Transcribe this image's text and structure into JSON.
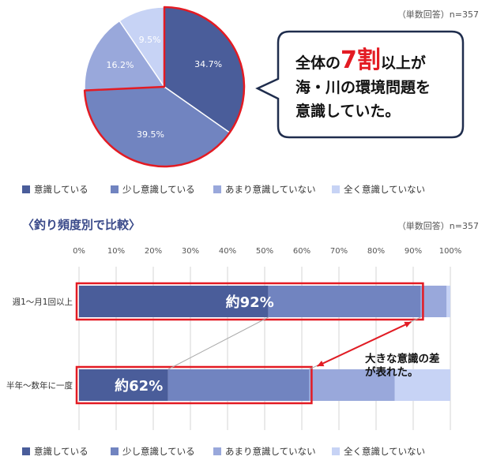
{
  "colors": {
    "c1": "#4a5d9a",
    "c2": "#7184c0",
    "c3": "#99a8db",
    "c4": "#c7d3f5",
    "highlight": "#e31b23"
  },
  "top": {
    "note": "（単数回答）n=357",
    "callout": {
      "line1_a": "全体の",
      "line1_big": "7割",
      "line1_b": "以上が",
      "line2": "海・川の環境問題を",
      "line3": "意識していた。"
    }
  },
  "bottom": {
    "section_title": "〈釣り頻度別で比較〉",
    "note": "（単数回答）n=357",
    "row_labels": [
      "週1〜月1回以上",
      "半年〜数年に一度"
    ],
    "highlight_labels": [
      "約92%",
      "約62%"
    ],
    "annotation": "大きな意識の差\nが表れた。"
  },
  "legend": [
    "意識している",
    "少し意識している",
    "あまり意識していない",
    "全く意識していない"
  ],
  "chart_data": [
    {
      "type": "pie",
      "categories": [
        "意識している",
        "少し意識している",
        "あまり意識していない",
        "全く意識していない"
      ],
      "values": [
        34.7,
        39.5,
        16.2,
        9.5
      ],
      "labels": [
        "34.7%",
        "39.5%",
        "16.2%",
        "9.5%"
      ]
    },
    {
      "type": "bar",
      "orientation": "horizontal-stacked",
      "categories": [
        "週1〜月1回以上",
        "半年〜数年に一度"
      ],
      "x_ticks": [
        "0%",
        "10%",
        "20%",
        "30%",
        "40%",
        "50%",
        "60%",
        "70%",
        "80%",
        "90%",
        "100%"
      ],
      "xlim": [
        0,
        100
      ],
      "series": [
        {
          "name": "意識している",
          "values": [
            51,
            24
          ]
        },
        {
          "name": "少し意識している",
          "values": [
            41,
            38
          ]
        },
        {
          "name": "あまり意識していない",
          "values": [
            7,
            23
          ]
        },
        {
          "name": "全く意識していない",
          "values": [
            1,
            15
          ]
        }
      ]
    }
  ]
}
